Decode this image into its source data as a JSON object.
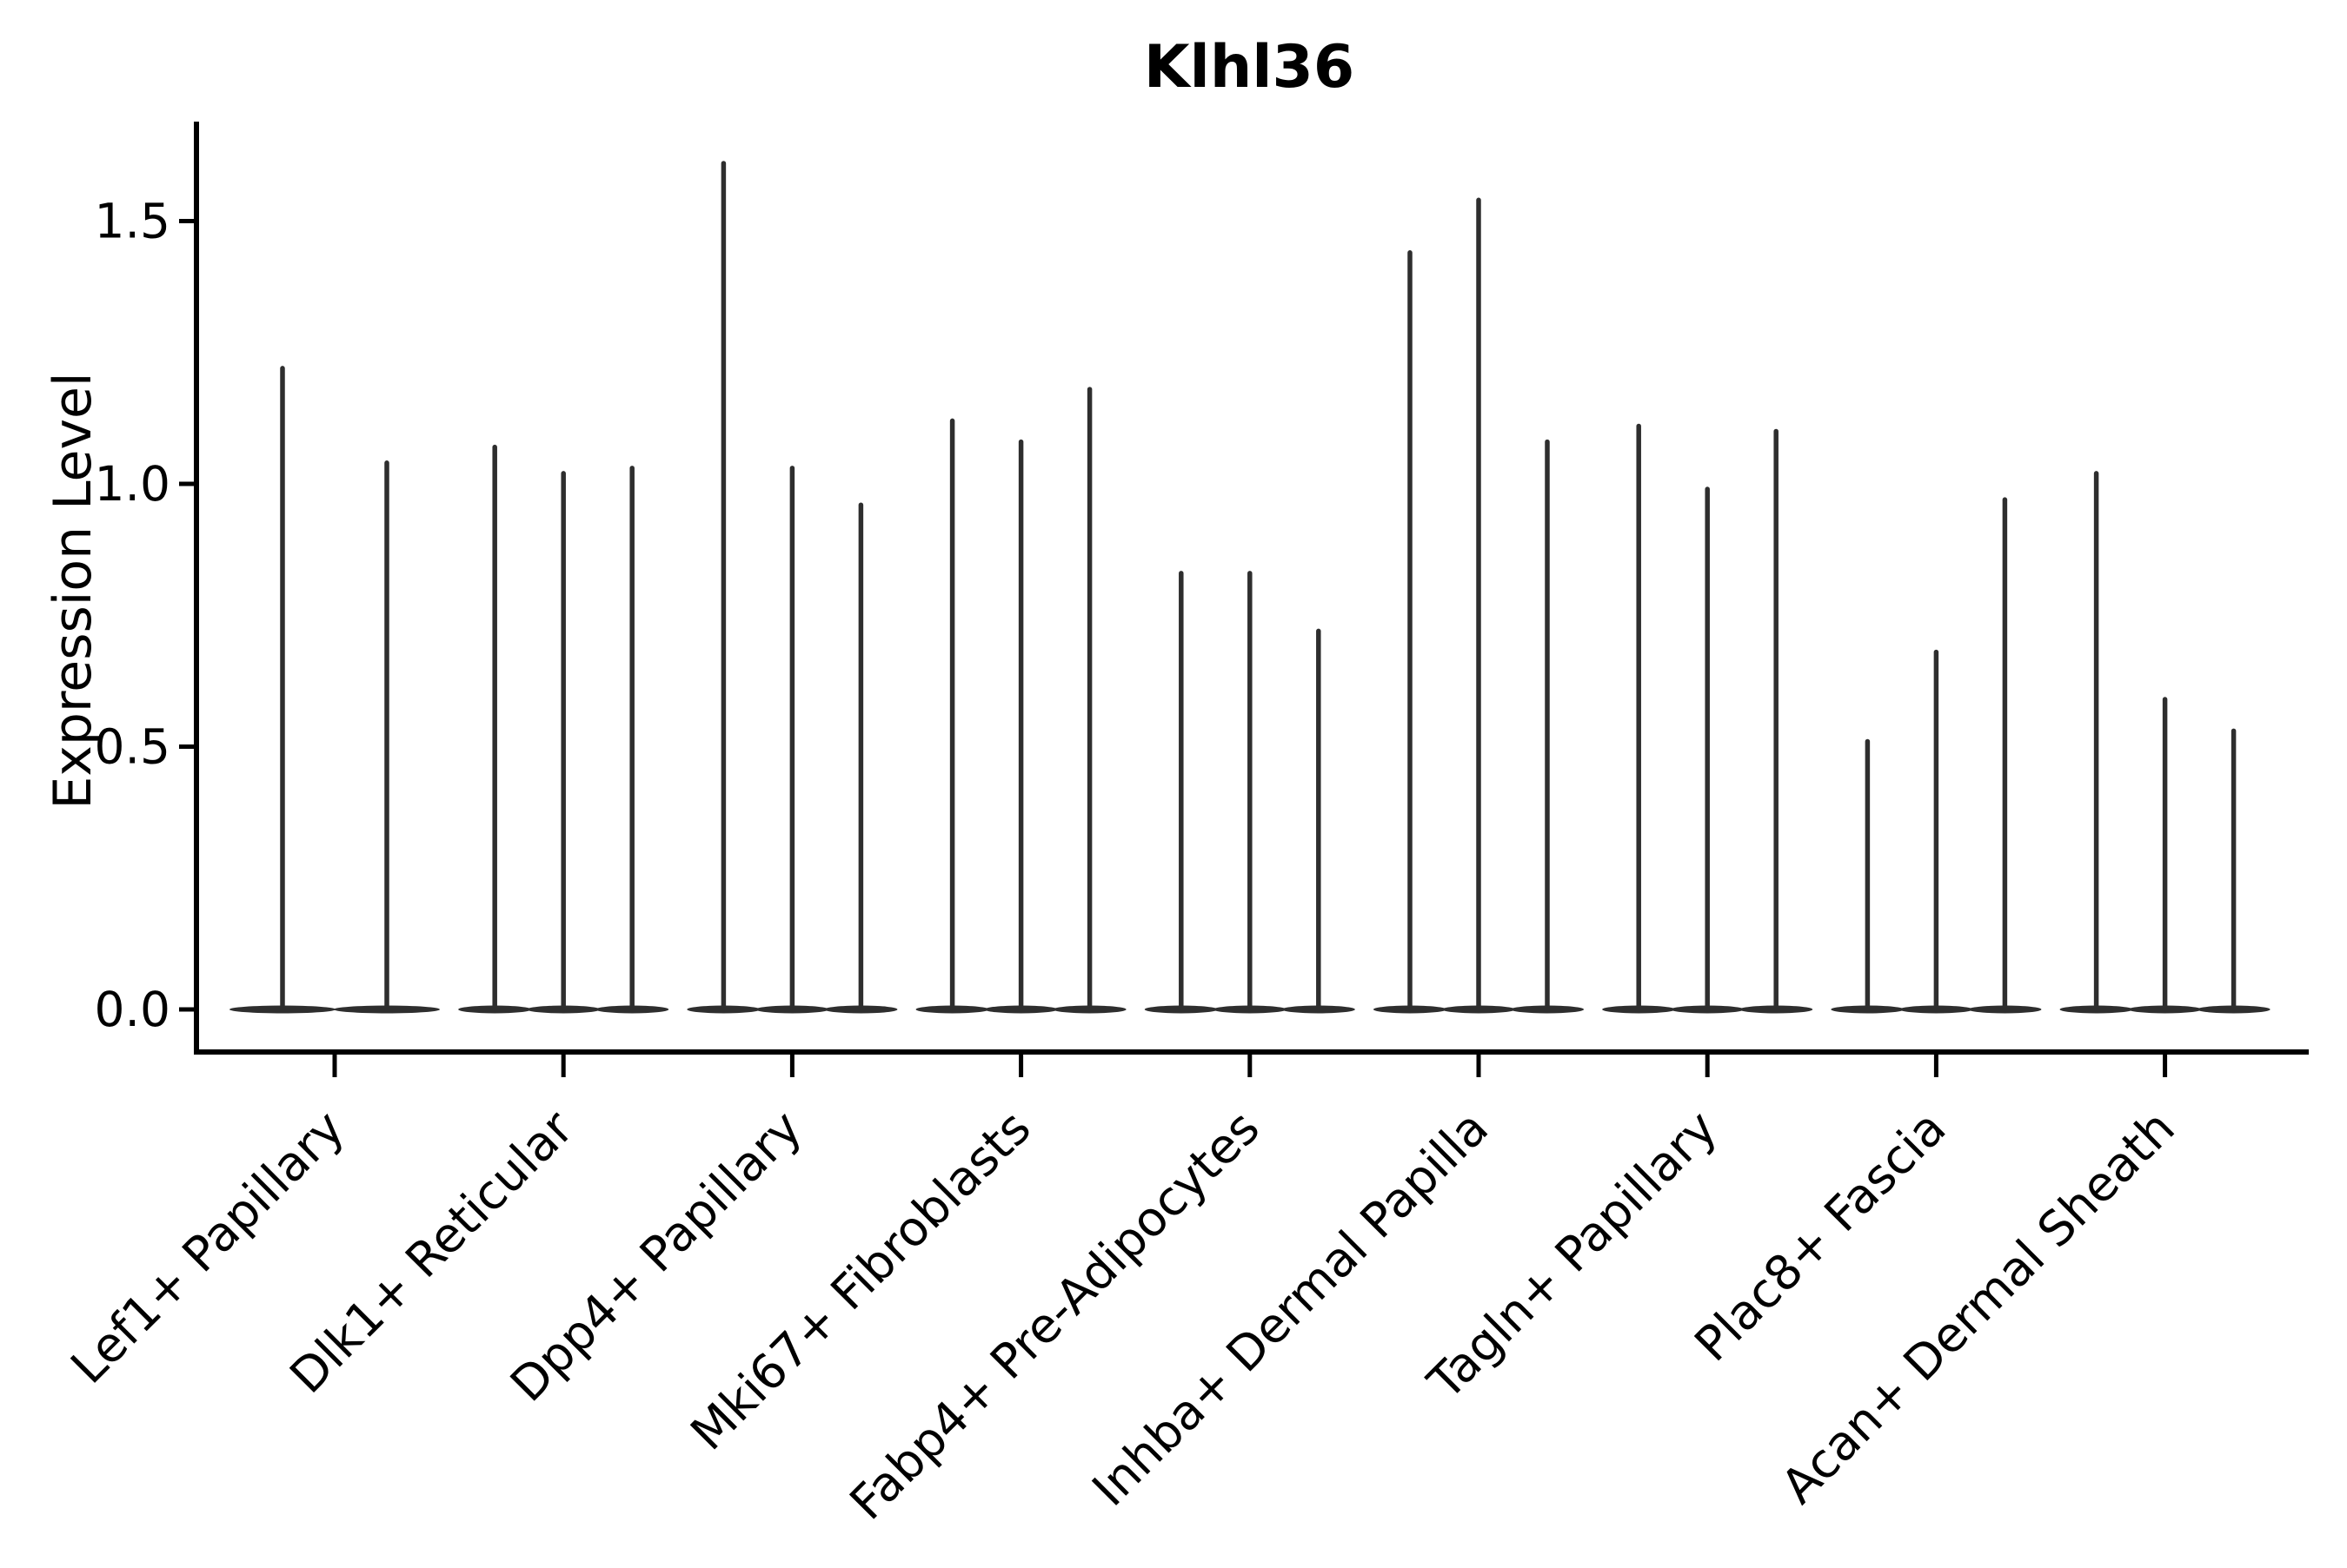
{
  "figure": {
    "background_color": "#ffffff",
    "axis_color": "#000000",
    "violin_color": "#2e2e2e",
    "text_color": "#000000"
  },
  "chart_data": {
    "type": "violin",
    "title": "Klhl36",
    "xlabel": "",
    "ylabel": "Expression Level",
    "y_ticks": [
      0.0,
      0.5,
      1.0,
      1.5
    ],
    "y_tick_labels": [
      "0.0",
      "0.5",
      "1.0",
      "1.5"
    ],
    "ylim": [
      -0.08,
      1.68
    ],
    "grid": false,
    "legend": null,
    "x_tick_rotation_deg": 45,
    "categories": [
      "Lef1+ Papillary",
      "Dlk1+ Reticular",
      "Dpp4+ Papillary",
      "Mki67+ Fibroblasts",
      "Fabp4+ Pre-Adipocytes",
      "Inhba+ Dermal Papilla",
      "Tagln+ Papillary",
      "Plac8+ Fascia",
      "Acan+ Dermal Sheath"
    ],
    "groups": [
      {
        "label": "Lef1+ Papillary",
        "violin_max_expression": [
          1.22,
          1.04
        ]
      },
      {
        "label": "Dlk1+ Reticular",
        "violin_max_expression": [
          1.07,
          1.02,
          1.03
        ]
      },
      {
        "label": "Dpp4+ Papillary",
        "violin_max_expression": [
          1.61,
          1.03,
          0.96
        ]
      },
      {
        "label": "Mki67+ Fibroblasts",
        "violin_max_expression": [
          1.12,
          1.08,
          1.18
        ]
      },
      {
        "label": "Fabp4+ Pre-Adipocytes",
        "violin_max_expression": [
          0.83,
          0.83,
          0.72
        ]
      },
      {
        "label": "Inhba+ Dermal Papilla",
        "violin_max_expression": [
          1.44,
          1.54,
          1.08
        ]
      },
      {
        "label": "Tagln+ Papillary",
        "violin_max_expression": [
          1.11,
          0.99,
          1.1
        ]
      },
      {
        "label": "Plac8+ Fascia",
        "violin_max_expression": [
          0.51,
          0.68,
          0.97
        ]
      },
      {
        "label": "Acan+ Dermal Sheath",
        "violin_max_expression": [
          1.02,
          0.59,
          0.53
        ]
      }
    ],
    "shape_note": "Each violin is collapsed: a flat dense base at expression 0 with a thin vertical tail reaching its maximum value."
  }
}
